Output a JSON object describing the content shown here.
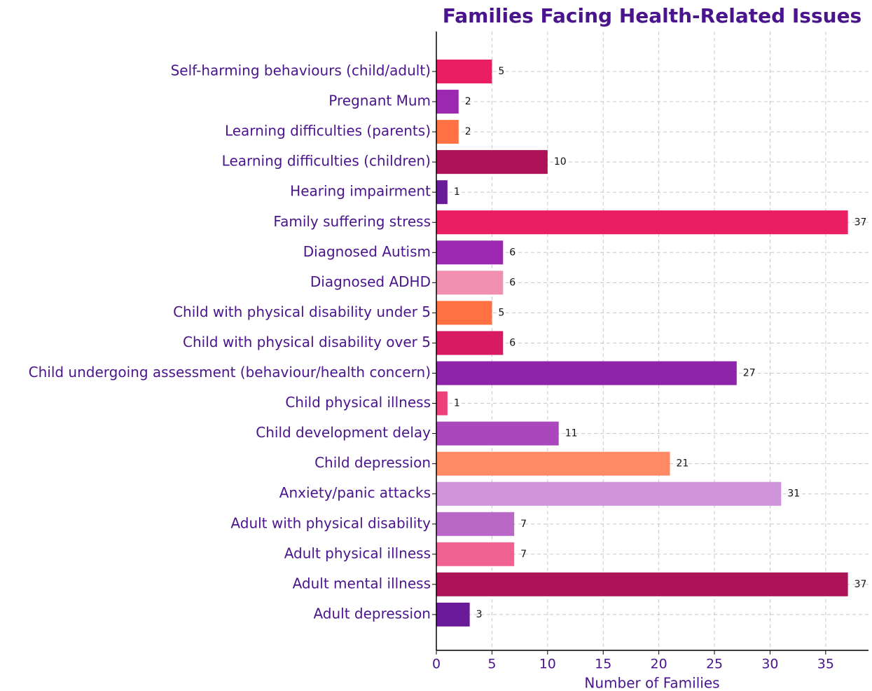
{
  "chart_data": {
    "type": "barh",
    "title": "Families Facing Health-Related Issues",
    "xlabel": "Number of Families",
    "categories": [
      "Self-harming behaviours (child/adult)",
      "Pregnant Mum",
      "Learning difficulties (parents)",
      "Learning difficulties (children)",
      "Hearing impairment",
      "Family suffering stress",
      "Diagnosed Autism",
      "Diagnosed ADHD",
      "Child with physical disability under 5",
      "Child with physical disability over 5",
      "Child undergoing assessment (behaviour/health concern)",
      "Child physical illness",
      "Child development delay",
      "Child depression",
      "Anxiety/panic attacks",
      "Adult with physical disability",
      "Adult physical illness",
      "Adult mental illness",
      "Adult depression"
    ],
    "values": [
      5,
      2,
      2,
      10,
      1,
      37,
      6,
      6,
      5,
      6,
      27,
      1,
      11,
      21,
      31,
      7,
      7,
      37,
      3
    ],
    "colors": [
      "#e91e63",
      "#9c27b0",
      "#ff7043",
      "#ad1457",
      "#6a1b9a",
      "#e91e63",
      "#9c27b0",
      "#f08fb0",
      "#ff7043",
      "#d81b60",
      "#8e24aa",
      "#ec407a",
      "#ab47bc",
      "#ff8a65",
      "#ce93d8",
      "#ba68c8",
      "#f06292",
      "#ad1457",
      "#6a1b9a"
    ],
    "xlim": [
      0,
      38.85
    ],
    "xticks": [
      0,
      5,
      10,
      15,
      20,
      25,
      30,
      35
    ],
    "grid": true
  }
}
